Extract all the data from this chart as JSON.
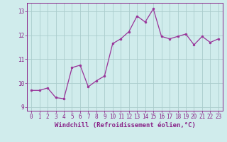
{
  "x": [
    0,
    1,
    2,
    3,
    4,
    5,
    6,
    7,
    8,
    9,
    10,
    11,
    12,
    13,
    14,
    15,
    16,
    17,
    18,
    19,
    20,
    21,
    22,
    23
  ],
  "y": [
    9.7,
    9.7,
    9.8,
    9.4,
    9.35,
    10.65,
    10.75,
    9.85,
    10.1,
    10.3,
    11.65,
    11.85,
    12.15,
    12.8,
    12.55,
    13.1,
    11.95,
    11.85,
    11.95,
    12.05,
    11.6,
    11.95,
    11.7,
    11.85
  ],
  "line_color": "#993399",
  "marker_color": "#993399",
  "bg_color": "#d0ecec",
  "grid_color": "#aacccc",
  "xlabel": "Windchill (Refroidissement éolien,°C)",
  "ylabel": "",
  "xlim": [
    -0.5,
    23.5
  ],
  "ylim": [
    8.85,
    13.35
  ],
  "yticks": [
    9,
    10,
    11,
    12,
    13
  ],
  "xticks": [
    0,
    1,
    2,
    3,
    4,
    5,
    6,
    7,
    8,
    9,
    10,
    11,
    12,
    13,
    14,
    15,
    16,
    17,
    18,
    19,
    20,
    21,
    22,
    23
  ],
  "tick_label_fontsize": 5.5,
  "xlabel_fontsize": 6.5,
  "label_color": "#882288"
}
